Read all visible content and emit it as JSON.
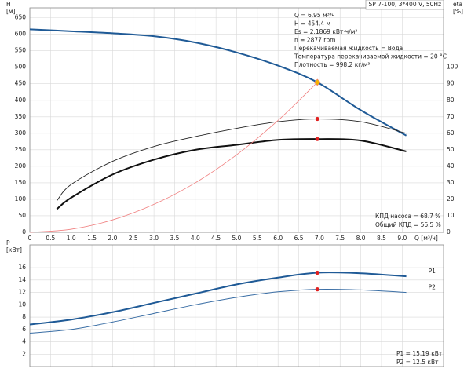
{
  "chart_data": [
    {
      "type": "line",
      "title": "SP 7-100, 3*400 V, 50Hz",
      "ylabel": [
        "H",
        "[м]"
      ],
      "y2label": [
        "eta",
        "[%]"
      ],
      "xlabel": "Q [м³/ч]",
      "xlim": [
        0,
        10
      ],
      "ylim": [
        0,
        680
      ],
      "y2lim": [
        0,
        136
      ],
      "xticks": [
        0,
        0.5,
        {
          "value": 1,
          "label": "1.0"
        },
        1.5,
        {
          "value": 2,
          "label": "2.0"
        },
        2.5,
        {
          "value": 3,
          "label": "3.0"
        },
        3.5,
        {
          "value": 4,
          "label": "4.0"
        },
        4.5,
        {
          "value": 5,
          "label": "5.0"
        },
        5.5,
        {
          "value": 6,
          "label": "6.0"
        },
        6.5,
        {
          "value": 7,
          "label": "7.0"
        },
        7.5,
        {
          "value": 8,
          "label": "8.0"
        },
        8.5,
        {
          "value": 9,
          "label": "9.0"
        }
      ],
      "yticks": [
        0,
        50,
        100,
        150,
        200,
        250,
        300,
        350,
        400,
        450,
        500,
        550,
        600,
        650
      ],
      "y2ticks": [
        0,
        10,
        20,
        30,
        40,
        50,
        60,
        70,
        80,
        90,
        100
      ],
      "grid": true,
      "series": [
        {
          "color": "#1f5a96",
          "width": 2,
          "x": [
            0,
            1,
            2,
            3,
            4,
            5,
            6,
            6.95,
            8,
            9.1
          ],
          "values": [
            615,
            609,
            603,
            594,
            575,
            545,
            505,
            454.4,
            370,
            293
          ]
        },
        {
          "color": "#222222",
          "width": 0.9,
          "axis": "y2",
          "x": [
            0.65,
            1,
            2,
            3,
            4,
            5,
            6,
            6.95,
            8,
            9.1
          ],
          "values": [
            19,
            29,
            43,
            52,
            58,
            63,
            67,
            68.7,
            67,
            60
          ]
        },
        {
          "color": "#111111",
          "width": 2,
          "axis": "y2",
          "x": [
            0.65,
            1,
            2,
            3,
            4,
            5,
            6,
            6.95,
            8,
            9.1
          ],
          "values": [
            14,
            21,
            35,
            44,
            50,
            53,
            56,
            56.5,
            55.6,
            49
          ]
        },
        {
          "color": "#f08080",
          "width": 0.8,
          "x": [
            0,
            1,
            2,
            3,
            4,
            5,
            6,
            6.95
          ],
          "values": [
            0,
            9.4,
            37.6,
            84.7,
            150,
            235,
            339,
            454.4
          ]
        }
      ],
      "points": [
        {
          "x": 6.95,
          "y": 454.4,
          "color": "#f5b400",
          "shape": "diamond"
        },
        {
          "x": 6.95,
          "y": 68.7,
          "axis": "y2",
          "color": "#e02020"
        },
        {
          "x": 6.95,
          "y": 56.5,
          "axis": "y2",
          "color": "#e02020"
        }
      ],
      "annotations": [
        "Q = 6.95 м³/ч",
        "H = 454.4 м",
        "Es = 2.1869 кВт·ч/м³",
        "n = 2877 rpm",
        "Перекачиваемая жидкость = Вода",
        "Температура перекачиваемой жидкости = 20 °C",
        "Плотность = 998.2 кг/м³",
        "КПД насоса = 68.7 %",
        "Общий КПД = 56.5 %"
      ]
    },
    {
      "type": "line",
      "ylabel": [
        "P",
        "[кВт]"
      ],
      "xlim": [
        0,
        10
      ],
      "ylim": [
        0,
        19.7
      ],
      "yticks": [
        2,
        4,
        6,
        8,
        10,
        12,
        14,
        16
      ],
      "grid": true,
      "series": [
        {
          "name": "P1",
          "color": "#1f5a96",
          "width": 2,
          "x": [
            0,
            1,
            2,
            3,
            4,
            5,
            6,
            6.95,
            8,
            9.1
          ],
          "values": [
            6.8,
            7.6,
            8.8,
            10.3,
            11.8,
            13.3,
            14.4,
            15.19,
            15.1,
            14.6
          ]
        },
        {
          "name": "P2",
          "color": "#3a6ea5",
          "width": 1,
          "x": [
            0,
            1,
            2,
            3,
            4,
            5,
            6,
            6.95,
            8,
            9.1
          ],
          "values": [
            5.4,
            6.0,
            7.2,
            8.6,
            10.0,
            11.2,
            12.1,
            12.5,
            12.4,
            12.0
          ]
        }
      ],
      "points": [
        {
          "x": 6.95,
          "y": 15.19,
          "color": "#e02020"
        },
        {
          "x": 6.95,
          "y": 12.5,
          "color": "#e02020"
        }
      ],
      "annotations": [
        "P1 = 15.19 кВт",
        "P2 = 12.5 кВт"
      ]
    }
  ]
}
